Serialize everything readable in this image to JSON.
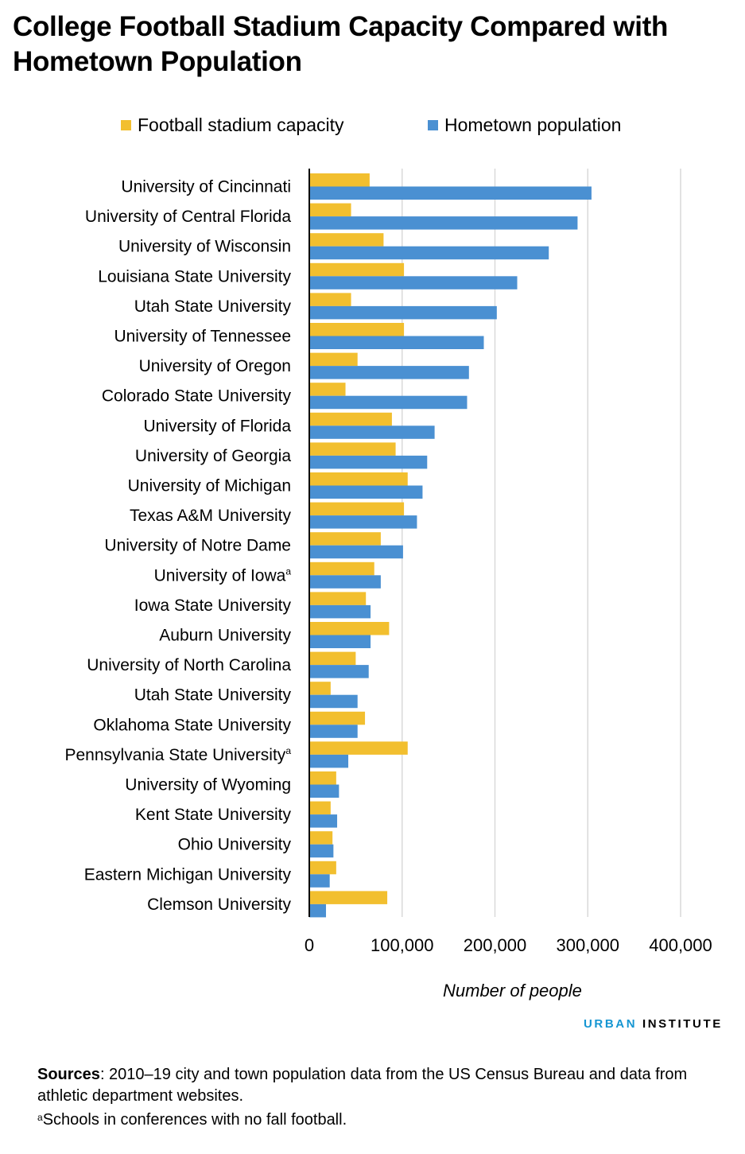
{
  "title": "College Football Stadium Capacity Compared with Hometown Population",
  "colors": {
    "stadium": "#f2bf2f",
    "population": "#4a90d2",
    "grid": "#d9d9d9",
    "axis": "#000000"
  },
  "chart_data": {
    "type": "bar",
    "orientation": "horizontal",
    "title": "College Football Stadium Capacity Compared with Hometown Population",
    "xlabel": "Number of people",
    "ylabel": "",
    "xlim": [
      0,
      400000
    ],
    "xticks": [
      0,
      100000,
      200000,
      300000,
      400000
    ],
    "xtick_labels": [
      "0",
      "100,000",
      "200,000",
      "300,000",
      "400,000"
    ],
    "grid": "vertical",
    "legend_position": "top",
    "categories": [
      "University of Cincinnati",
      "University of Central Florida",
      "University of Wisconsin",
      "Louisiana State University",
      "Utah State University",
      "University of Tennessee",
      "University of Oregon",
      "Colorado State University",
      "University of Florida",
      "University of Georgia",
      "University of Michigan",
      "Texas A&M University",
      "University of Notre Dame",
      "University of Iowa",
      "Iowa State University",
      "Auburn University",
      "University of North Carolina",
      "Utah State University",
      "Oklahoma State University",
      "Pennsylvania State University",
      "University of Wyoming",
      "Kent State University",
      "Ohio University",
      "Eastern Michigan University",
      "Clemson University"
    ],
    "category_superscripts": [
      "",
      "",
      "",
      "",
      "",
      "",
      "",
      "",
      "",
      "",
      "",
      "",
      "",
      "a",
      "",
      "",
      "",
      "",
      "",
      "a",
      "",
      "",
      "",
      "",
      ""
    ],
    "series": [
      {
        "name": "Football stadium capacity",
        "color": "#f2bf2f",
        "values": [
          65000,
          45000,
          80000,
          102000,
          45000,
          102000,
          52000,
          39000,
          89000,
          93000,
          106000,
          102000,
          77000,
          70000,
          61000,
          86000,
          50000,
          23000,
          60000,
          106000,
          29000,
          23000,
          25000,
          29000,
          84000
        ]
      },
      {
        "name": "Hometown population",
        "color": "#4a90d2",
        "values": [
          304000,
          289000,
          258000,
          224000,
          202000,
          188000,
          172000,
          170000,
          135000,
          127000,
          122000,
          116000,
          101000,
          77000,
          66000,
          66000,
          64000,
          52000,
          52000,
          42000,
          32000,
          30000,
          26000,
          22000,
          18000
        ]
      }
    ]
  },
  "branding": {
    "part1": "URBAN",
    "part2": "INSTITUTE"
  },
  "sources": {
    "lead": "Sources",
    "text": ": 2010–19 city and town population data from the US Census Bureau and data from athletic department websites."
  },
  "footnote": {
    "marker": "a",
    "text": "Schools in conferences with no fall football."
  }
}
